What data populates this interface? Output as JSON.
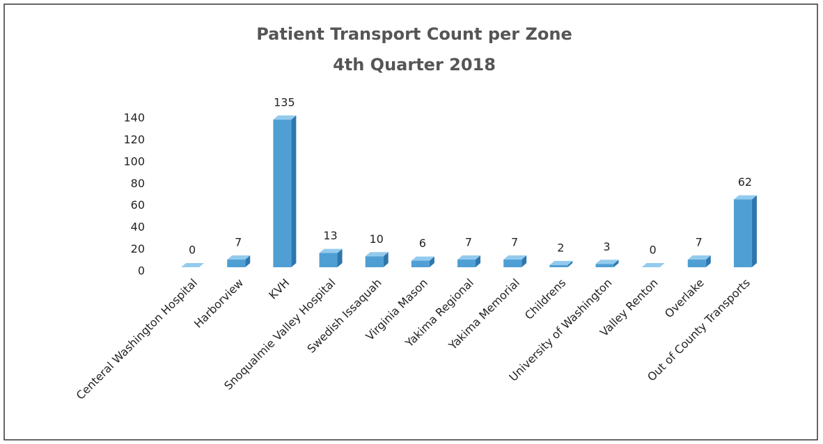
{
  "chart_data": {
    "type": "bar3d",
    "title": "Patient Transport Count per Zone",
    "subtitle": "4th Quarter 2018",
    "categories": [
      "Centeral Washington Hospital",
      "Harborview",
      "KVH",
      "Snoqualmie Valley Hospital",
      "Swedish Issaquah",
      "Virginia Mason",
      "Yakima Regional",
      "Yakima Memorial",
      "Childrens",
      "University of Washington",
      "Valley Renton",
      "Overlake",
      "Out of County Transports"
    ],
    "values": [
      0,
      7,
      135,
      13,
      10,
      6,
      7,
      7,
      2,
      3,
      0,
      7,
      62
    ],
    "color": "#4f9fd4",
    "ylim": [
      0,
      140
    ],
    "yticks": [
      0,
      20,
      40,
      60,
      80,
      100,
      120,
      140
    ],
    "grid": false
  }
}
